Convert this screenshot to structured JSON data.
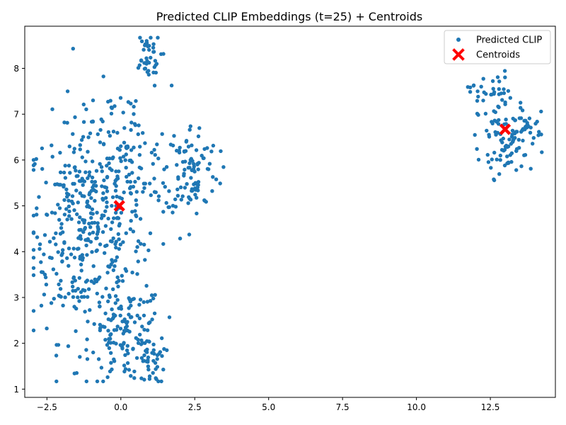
{
  "chart_data": {
    "type": "scatter",
    "title": "Predicted CLIP Embeddings (t=25) + Centroids",
    "xlabel": "",
    "ylabel": "",
    "xlim": [
      -3.25,
      14.7
    ],
    "ylim": [
      0.82,
      8.92
    ],
    "xticks": [
      -2.5,
      0.0,
      2.5,
      5.0,
      7.5,
      10.0,
      12.5
    ],
    "xtick_labels": [
      "−2.5",
      "0.0",
      "2.5",
      "5.0",
      "7.5",
      "10.0",
      "12.5"
    ],
    "yticks": [
      1,
      2,
      3,
      4,
      5,
      6,
      7,
      8
    ],
    "ytick_labels": [
      "1",
      "2",
      "3",
      "4",
      "5",
      "6",
      "7",
      "8"
    ],
    "grid": false,
    "legend_position": "top-right",
    "series": [
      {
        "name": "Predicted CLIP",
        "marker": "circle",
        "color": "#1f77b4",
        "clusters": [
          {
            "cx": -1.2,
            "cy": 4.5,
            "sx": 0.95,
            "sy": 1.2,
            "n": 380
          },
          {
            "cx": 0.2,
            "cy": 2.2,
            "sx": 0.6,
            "sy": 0.55,
            "n": 130
          },
          {
            "cx": 0.1,
            "cy": 5.8,
            "sx": 0.8,
            "sy": 0.9,
            "n": 120
          },
          {
            "cx": 2.4,
            "cy": 5.8,
            "sx": 0.45,
            "sy": 0.5,
            "n": 100
          },
          {
            "cx": 0.85,
            "cy": 8.2,
            "sx": 0.25,
            "sy": 0.3,
            "n": 40
          },
          {
            "cx": 1.0,
            "cy": 1.6,
            "sx": 0.25,
            "sy": 0.25,
            "n": 35
          },
          {
            "cx": 12.5,
            "cy": 7.5,
            "sx": 0.35,
            "sy": 0.22,
            "n": 35
          },
          {
            "cx": 13.1,
            "cy": 6.5,
            "sx": 0.5,
            "sy": 0.35,
            "n": 60
          },
          {
            "cx": 13.8,
            "cy": 6.75,
            "sx": 0.25,
            "sy": 0.15,
            "n": 25
          },
          {
            "cx": 12.9,
            "cy": 6.0,
            "sx": 0.45,
            "sy": 0.2,
            "n": 25
          }
        ]
      },
      {
        "name": "Centroids",
        "marker": "x",
        "color": "#ff0000",
        "points": [
          {
            "x": -0.05,
            "y": 5.0
          },
          {
            "x": 13.0,
            "y": 6.67
          }
        ]
      }
    ]
  }
}
